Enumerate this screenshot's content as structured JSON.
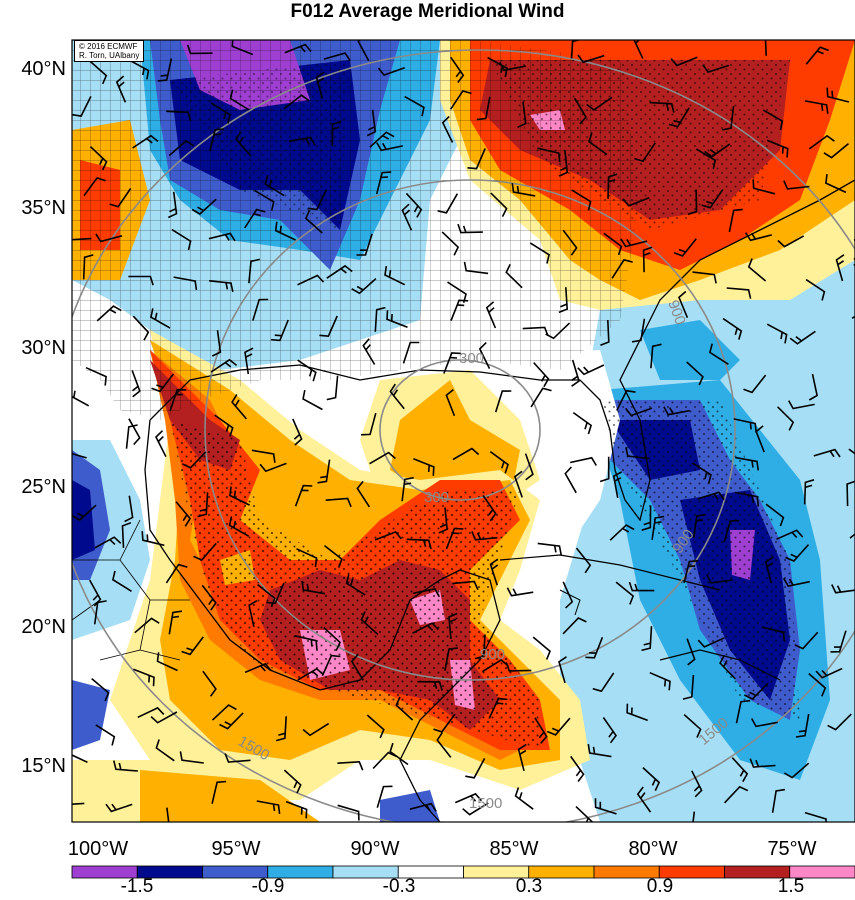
{
  "title": "F012 Average Meridional Wind",
  "credit": {
    "line1": "© 2016 ECMWF",
    "line2": "R. Torn, UAlbany"
  },
  "lat_labels": [
    "40°N",
    "35°N",
    "30°N",
    "25°N",
    "20°N",
    "15°N"
  ],
  "lon_labels": [
    "100°W",
    "95°W",
    "90°W",
    "85°W",
    "80°W",
    "75°W"
  ],
  "contour_labels": [
    "300",
    "300",
    "900",
    "900",
    "900",
    "1500",
    "1500",
    "1500"
  ],
  "colorbar": {
    "labels": [
      "-1.5",
      "-0.9",
      "-0.3",
      "0.3",
      "0.9",
      "1.5"
    ],
    "colors": [
      "#9e3fd2",
      "#000a8c",
      "#3f5ccd",
      "#2faee6",
      "#a6dff5",
      "#ffffff",
      "#fff09a",
      "#ffb000",
      "#ff7a00",
      "#ff3c00",
      "#b41f1f",
      "#ff86c7"
    ]
  },
  "map_extent": {
    "lon_min": -100,
    "lon_max": -72.7,
    "lat_min": 13.2,
    "lat_max": 41.5
  }
}
